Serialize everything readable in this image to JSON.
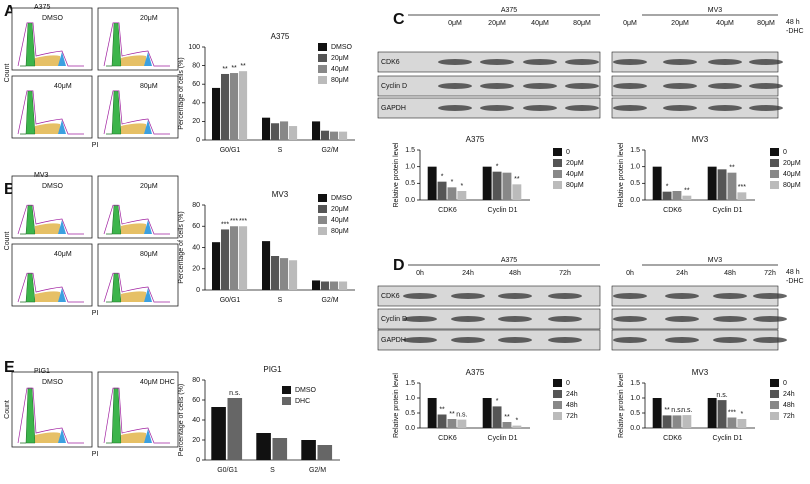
{
  "panel_letters": [
    "A",
    "B",
    "C",
    "D",
    "E"
  ],
  "flow": [
    {
      "title": "A375",
      "subpanels": [
        "DMSO",
        "20μM",
        "40μM",
        "80μM"
      ],
      "ylabel": "Count",
      "xlabel": "PI"
    },
    {
      "title": "MV3",
      "subpanels": [
        "DMSO",
        "20μM",
        "40μM",
        "80μM"
      ],
      "ylabel": "Count",
      "xlabel": "PI"
    },
    {
      "title": "PIG1",
      "subpanels": [
        "DMSO",
        "40μM DHC"
      ],
      "ylabel": "Count",
      "xlabel": "PI"
    }
  ],
  "blots": [
    {
      "groups": [
        "A375",
        "MV3"
      ],
      "lanes": [
        "0μM",
        "20μM",
        "40μM",
        "80μM"
      ],
      "treatment": [
        "48 h",
        "-DHC"
      ],
      "rows": [
        "CDK6",
        "Cyclin D",
        "GAPDH"
      ]
    },
    {
      "groups": [
        "A375",
        "MV3"
      ],
      "lanes": [
        "0h",
        "24h",
        "48h",
        "72h"
      ],
      "treatment": [
        "48 h",
        "-DHC"
      ],
      "rows": [
        "CDK6",
        "Cyclin D",
        "GAPDH"
      ]
    }
  ],
  "chart_data": [
    {
      "type": "bar",
      "title": "A375",
      "ylabel": "Percentage of cells (%)",
      "categories": [
        "G0/G1",
        "S",
        "G2/M"
      ],
      "ylim": [
        0,
        100
      ],
      "yticks": [
        0,
        20,
        40,
        60,
        80,
        100
      ],
      "series": [
        {
          "name": "DMSO",
          "color": "#111111",
          "values": [
            56,
            24,
            20
          ]
        },
        {
          "name": "20μM",
          "color": "#555555",
          "values": [
            71,
            18,
            10
          ],
          "significance": [
            "**",
            null,
            null
          ]
        },
        {
          "name": "40μM",
          "color": "#888888",
          "values": [
            72,
            20,
            9
          ],
          "significance": [
            "**",
            null,
            null
          ]
        },
        {
          "name": "80μM",
          "color": "#bbbbbb",
          "values": [
            74,
            15,
            9
          ],
          "significance": [
            "**",
            null,
            null
          ]
        }
      ]
    },
    {
      "type": "bar",
      "title": "MV3",
      "ylabel": "Percentage of cells (%)",
      "categories": [
        "G0/G1",
        "S",
        "G2/M"
      ],
      "ylim": [
        0,
        80
      ],
      "yticks": [
        0,
        20,
        40,
        60,
        80
      ],
      "series": [
        {
          "name": "DMSO",
          "color": "#111111",
          "values": [
            45,
            46,
            9
          ]
        },
        {
          "name": "20μM",
          "color": "#555555",
          "values": [
            57,
            32,
            8
          ],
          "significance": [
            "***",
            null,
            null
          ]
        },
        {
          "name": "40μM",
          "color": "#888888",
          "values": [
            60,
            30,
            8
          ],
          "significance": [
            "***",
            null,
            null
          ]
        },
        {
          "name": "80μM",
          "color": "#bbbbbb",
          "values": [
            60,
            28,
            8
          ],
          "significance": [
            "***",
            null,
            null
          ]
        }
      ]
    },
    {
      "type": "bar",
      "title": "PIG1",
      "ylabel": "Percentage of cells (%)",
      "categories": [
        "G0/G1",
        "S",
        "G2/M"
      ],
      "ylim": [
        0,
        80
      ],
      "yticks": [
        0,
        20,
        40,
        60,
        80
      ],
      "series": [
        {
          "name": "DMSO",
          "color": "#111111",
          "values": [
            53,
            27,
            20
          ]
        },
        {
          "name": "DHC",
          "color": "#666666",
          "values": [
            62,
            22,
            15
          ],
          "significance": [
            "n.s.",
            null,
            null
          ]
        }
      ]
    },
    {
      "type": "bar",
      "title": "A375",
      "ylabel": "Relative protein level",
      "categories": [
        "CDK6",
        "Cyclin D1"
      ],
      "ylim": [
        0,
        1.5
      ],
      "yticks": [
        {
          "value": 0,
          "label": "0.0"
        },
        0.5,
        {
          "value": 1,
          "label": "1.0"
        },
        1.5
      ],
      "series": [
        {
          "name": "0",
          "color": "#111111",
          "values": [
            1.0,
            1.0
          ]
        },
        {
          "name": "20μM",
          "color": "#555555",
          "values": [
            0.55,
            0.85
          ],
          "significance": [
            "*",
            "*"
          ]
        },
        {
          "name": "40μM",
          "color": "#888888",
          "values": [
            0.38,
            0.82
          ],
          "significance": [
            "*",
            null
          ]
        },
        {
          "name": "80μM",
          "color": "#bbbbbb",
          "values": [
            0.27,
            0.47
          ],
          "significance": [
            "*",
            "**"
          ]
        }
      ]
    },
    {
      "type": "bar",
      "title": "MV3",
      "ylabel": "Relative protein level",
      "categories": [
        "CDK6",
        "Cyclin D1"
      ],
      "ylim": [
        0,
        1.5
      ],
      "yticks": [
        {
          "value": 0,
          "label": "0.0"
        },
        0.5,
        {
          "value": 1,
          "label": "1.0"
        },
        1.5
      ],
      "series": [
        {
          "name": "0",
          "color": "#111111",
          "values": [
            1.0,
            1.0
          ]
        },
        {
          "name": "20μM",
          "color": "#555555",
          "values": [
            0.25,
            0.92
          ],
          "significance": [
            "*",
            null
          ]
        },
        {
          "name": "40μM",
          "color": "#888888",
          "values": [
            0.27,
            0.82
          ],
          "significance": [
            null,
            "**"
          ]
        },
        {
          "name": "80μM",
          "color": "#bbbbbb",
          "values": [
            0.13,
            0.23
          ],
          "significance": [
            "**",
            "***"
          ]
        }
      ]
    },
    {
      "type": "bar",
      "title": "A375",
      "ylabel": "Relative protein level",
      "categories": [
        "CDK6",
        "Cyclin D1"
      ],
      "ylim": [
        0,
        1.5
      ],
      "yticks": [
        {
          "value": 0,
          "label": "0.0"
        },
        0.5,
        {
          "value": 1,
          "label": "1.0"
        },
        1.5
      ],
      "series": [
        {
          "name": "0",
          "color": "#111111",
          "values": [
            1.0,
            1.0
          ]
        },
        {
          "name": "24h",
          "color": "#555555",
          "values": [
            0.45,
            0.72
          ],
          "significance": [
            "**",
            "*"
          ]
        },
        {
          "name": "48h",
          "color": "#888888",
          "values": [
            0.3,
            0.2
          ],
          "significance": [
            "**",
            "**"
          ]
        },
        {
          "name": "72h",
          "color": "#bbbbbb",
          "values": [
            0.28,
            0.08
          ],
          "significance": [
            "n.s.",
            "*"
          ]
        }
      ]
    },
    {
      "type": "bar",
      "title": "MV3",
      "ylabel": "Relative protein level",
      "categories": [
        "CDK6",
        "Cyclin D1"
      ],
      "ylim": [
        0,
        1.5
      ],
      "yticks": [
        {
          "value": 0,
          "label": "0.0"
        },
        0.5,
        {
          "value": 1,
          "label": "1.0"
        },
        1.5
      ],
      "series": [
        {
          "name": "0",
          "color": "#111111",
          "values": [
            1.0,
            1.0
          ]
        },
        {
          "name": "24h",
          "color": "#555555",
          "values": [
            0.42,
            0.93
          ],
          "significance": [
            "**",
            "n.s."
          ]
        },
        {
          "name": "48h",
          "color": "#888888",
          "values": [
            0.42,
            0.35
          ],
          "significance": [
            "n.s.",
            "***"
          ]
        },
        {
          "name": "72h",
          "color": "#bbbbbb",
          "values": [
            0.43,
            0.3
          ],
          "significance": [
            "n.s.",
            "*"
          ]
        }
      ]
    }
  ]
}
